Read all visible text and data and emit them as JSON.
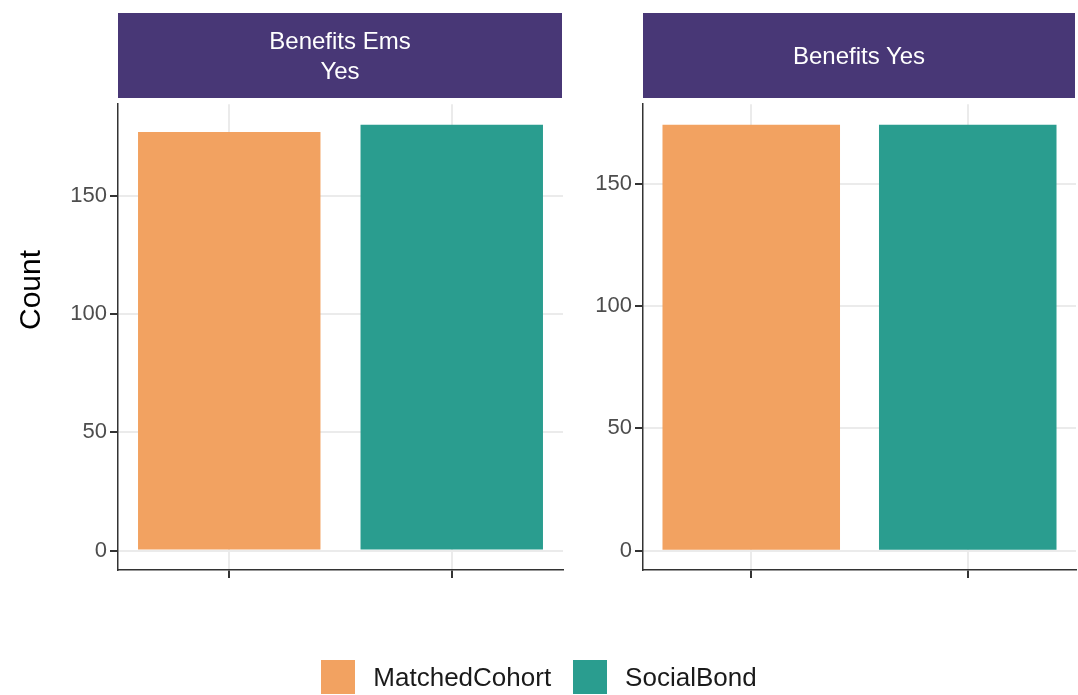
{
  "chart_data": [
    {
      "type": "bar",
      "title": "Benefits Ems\nYes",
      "ylabel": "Count",
      "categories": [
        null,
        null
      ],
      "series": [
        {
          "name": "MatchedCohort",
          "color": "#f2a261",
          "values": [
            177,
            null
          ]
        },
        {
          "name": "SocialBond",
          "color": "#2a9d8f",
          "values": [
            null,
            180
          ]
        }
      ],
      "ylim": [
        -8.2,
        188.7
      ],
      "yticks": [
        0,
        50,
        100,
        150
      ],
      "grid": true,
      "legend": "bottom",
      "tick_labels": "y"
    },
    {
      "type": "bar",
      "title": "Benefits Yes",
      "categories": [
        null,
        null
      ],
      "series": [
        {
          "color": "#f2a261",
          "values": [
            174,
            null
          ]
        },
        {
          "color": "#2a9d8f",
          "values": [
            null,
            174
          ]
        }
      ],
      "ylim": [
        -7.9,
        182.4
      ],
      "yticks": [
        0,
        50,
        100,
        150
      ],
      "grid": true,
      "tick_labels": "y"
    }
  ]
}
